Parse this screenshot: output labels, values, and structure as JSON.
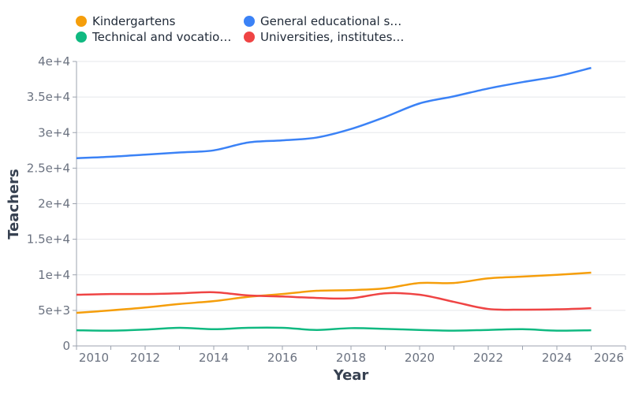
{
  "chart_data": {
    "type": "line",
    "title": "",
    "xlabel": "Year",
    "ylabel": "Teachers",
    "xlim": [
      2010,
      2026
    ],
    "ylim": [
      0,
      40000
    ],
    "x_ticks": [
      "2010",
      "2012",
      "2014",
      "2016",
      "2018",
      "2020",
      "2022",
      "2024",
      "2026"
    ],
    "y_ticks": [
      "0",
      "5e+3",
      "1e+4",
      "1.5e+4",
      "2e+4",
      "2.5e+4",
      "3e+4",
      "3.5e+4",
      "4e+4"
    ],
    "grid": true,
    "legend_position": "top-left",
    "x": [
      2010,
      2011,
      2012,
      2013,
      2014,
      2015,
      2016,
      2017,
      2018,
      2019,
      2020,
      2021,
      2022,
      2023,
      2024,
      2025
    ],
    "series": [
      {
        "name": "Kindergartens",
        "legend_label": "Kindergartens",
        "color": "#f59e0b",
        "values": [
          4650,
          5000,
          5400,
          5900,
          6300,
          6900,
          7300,
          7750,
          7850,
          8100,
          8850,
          8850,
          9500,
          9750,
          10000,
          10300
        ]
      },
      {
        "name": "General educational s…",
        "legend_label": "General educational s…",
        "color": "#3b82f6",
        "values": [
          26400,
          26600,
          26900,
          27200,
          27500,
          28600,
          28900,
          29300,
          30500,
          32200,
          34100,
          35100,
          36200,
          37100,
          37900,
          39100
        ]
      },
      {
        "name": "Technical and vocatio…",
        "legend_label": "Technical and vocatio…",
        "color": "#10b981",
        "values": [
          2200,
          2150,
          2300,
          2550,
          2350,
          2550,
          2550,
          2250,
          2500,
          2400,
          2250,
          2150,
          2250,
          2350,
          2150,
          2200
        ]
      },
      {
        "name": "Universities, institutes…",
        "legend_label": "Universities, institutes…",
        "color": "#ef4444",
        "values": [
          7200,
          7300,
          7300,
          7400,
          7550,
          7100,
          6950,
          6750,
          6700,
          7400,
          7200,
          6200,
          5200,
          5100,
          5150,
          5300
        ]
      }
    ]
  }
}
